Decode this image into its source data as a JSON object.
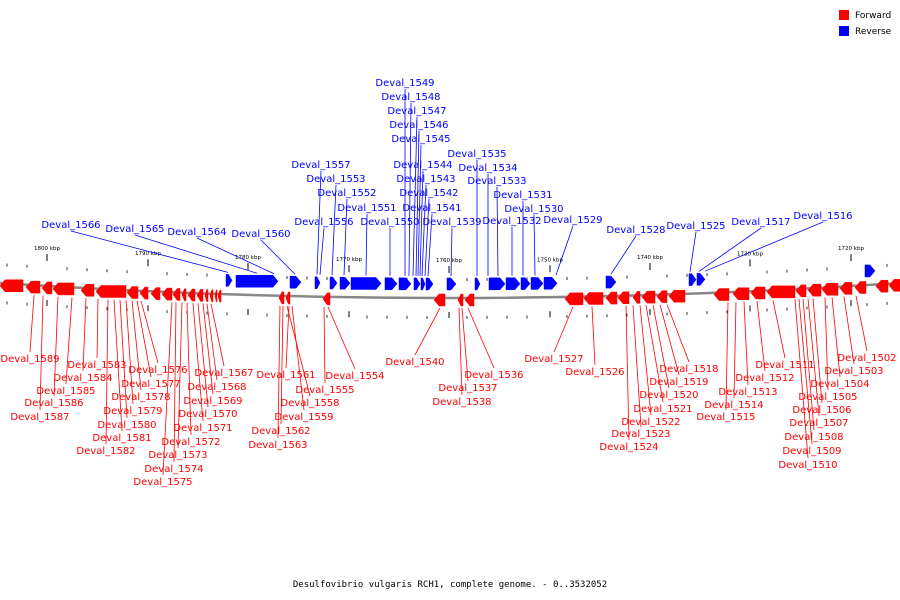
{
  "legend": {
    "forward_label": "Forward",
    "reverse_label": "Reverse",
    "forward_color": "#ff0000",
    "reverse_color": "#0000ff"
  },
  "colors": {
    "axis": "#888888",
    "tick": "#000000"
  },
  "footer": {
    "caption": "Desulfovibrio vulgaris RCH1, complete genome. - 0..3532052"
  },
  "scale_labels": [
    "1800 kbp",
    "1790 kbp",
    "1780 kbp",
    "1770 kbp",
    "1760 kbp",
    "1750 kbp",
    "1740 kbp",
    "1730 kbp",
    "1720 kbp"
  ],
  "reverse_genes": [
    "Deval_1566",
    "Deval_1565",
    "Deval_1564",
    "Deval_1560",
    "Deval_1557",
    "Deval_1556",
    "Deval_1553",
    "Deval_1552",
    "Deval_1551",
    "Deval_1550",
    "Deval_1549",
    "Deval_1548",
    "Deval_1547",
    "Deval_1546",
    "Deval_1545",
    "Deval_1544",
    "Deval_1543",
    "Deval_1542",
    "Deval_1541",
    "Deval_1539",
    "Deval_1535",
    "Deval_1534",
    "Deval_1533",
    "Deval_1532",
    "Deval_1531",
    "Deval_1530",
    "Deval_1529",
    "Deval_1528",
    "Deval_1525",
    "Deval_1517",
    "Deval_1516"
  ],
  "forward_genes": [
    "Deval_1589",
    "Deval_1583",
    "Deval_1584",
    "Deval_1585",
    "Deval_1586",
    "Deval_1587",
    "Deval_1576",
    "Deval_1577",
    "Deval_1578",
    "Deval_1579",
    "Deval_1580",
    "Deval_1581",
    "Deval_1582",
    "Deval_1567",
    "Deval_1568",
    "Deval_1569",
    "Deval_1570",
    "Deval_1571",
    "Deval_1572",
    "Deval_1573",
    "Deval_1574",
    "Deval_1575",
    "Deval_1561",
    "Deval_1562",
    "Deval_1563",
    "Deval_1559",
    "Deval_1558",
    "Deval_1555",
    "Deval_1554",
    "Deval_1540",
    "Deval_1537",
    "Deval_1538",
    "Deval_1536",
    "Deval_1527",
    "Deval_1526",
    "Deval_1518",
    "Deval_1519",
    "Deval_1520",
    "Deval_1521",
    "Deval_1522",
    "Deval_1523",
    "Deval_1524",
    "Deval_1511",
    "Deval_1512",
    "Deval_1513",
    "Deval_1514",
    "Deval_1515",
    "Deval_1502",
    "Deval_1503",
    "Deval_1504",
    "Deval_1505",
    "Deval_1506",
    "Deval_1507",
    "Deval_1508",
    "Deval_1509",
    "Deval_1510"
  ]
}
